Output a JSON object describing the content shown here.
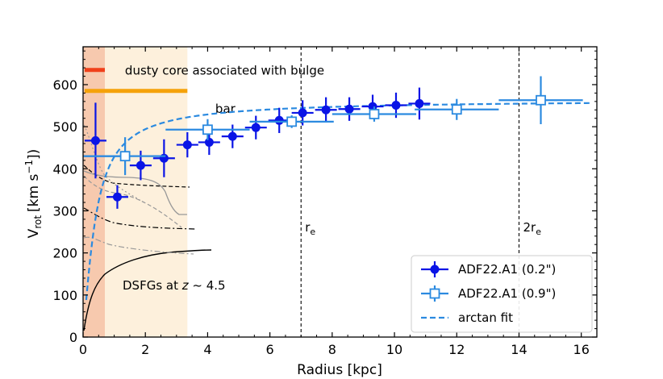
{
  "chart_data": {
    "type": "scatter",
    "title": "",
    "xlabel": "Radius [kpc]",
    "ylabel_main": "V",
    "ylabel_sub": "rot",
    "ylabel_unit": "[km s",
    "ylabel_exp": "−1",
    "ylabel_close": "])",
    "xlim": [
      0,
      16.5
    ],
    "ylim": [
      0,
      690
    ],
    "xticks": [
      0,
      2,
      4,
      6,
      8,
      10,
      12,
      14,
      16
    ],
    "yticks": [
      0,
      100,
      200,
      300,
      400,
      500,
      600
    ],
    "shaded_regions": [
      {
        "name": "dusty-core-region",
        "x0": 0,
        "x1": 0.7,
        "color": "#f7c9ae"
      },
      {
        "name": "bar-region",
        "x0": 0.7,
        "x1": 3.35,
        "color": "#fdf0dc"
      }
    ],
    "annotation_lines": [
      {
        "name": "dusty-core-line",
        "x0": 0.05,
        "x1": 0.7,
        "y": 635,
        "color": "#f0401a",
        "label": "dusty core associated with bulge"
      },
      {
        "name": "bar-line",
        "x0": 0.05,
        "x1": 3.35,
        "y": 585,
        "color": "#f5a20a",
        "label": "bar"
      }
    ],
    "vlines": [
      {
        "name": "re-line",
        "x": 7.0,
        "label_main": "r",
        "label_sub": "e"
      },
      {
        "name": "2re-line",
        "x": 14.0,
        "label_main": "2r",
        "label_sub": "e"
      }
    ],
    "series": [
      {
        "name": "ADF22.A1 (0.2\")",
        "color": "#0a14e6",
        "marker": "filled-circle",
        "points": [
          {
            "x": 0.4,
            "y": 467,
            "xerr": 0.35,
            "yerr": 90
          },
          {
            "x": 1.1,
            "y": 333,
            "xerr": 0.35,
            "yerr": 28
          },
          {
            "x": 1.85,
            "y": 408,
            "xerr": 0.35,
            "yerr": 35
          },
          {
            "x": 2.6,
            "y": 425,
            "xerr": 0.35,
            "yerr": 45
          },
          {
            "x": 3.35,
            "y": 457,
            "xerr": 0.35,
            "yerr": 30
          },
          {
            "x": 4.05,
            "y": 463,
            "xerr": 0.35,
            "yerr": 30
          },
          {
            "x": 4.8,
            "y": 477,
            "xerr": 0.35,
            "yerr": 28
          },
          {
            "x": 5.55,
            "y": 498,
            "xerr": 0.35,
            "yerr": 28
          },
          {
            "x": 6.3,
            "y": 515,
            "xerr": 0.35,
            "yerr": 30
          },
          {
            "x": 7.05,
            "y": 533,
            "xerr": 0.35,
            "yerr": 30
          },
          {
            "x": 7.8,
            "y": 540,
            "xerr": 0.35,
            "yerr": 30
          },
          {
            "x": 8.55,
            "y": 542,
            "xerr": 0.35,
            "yerr": 28
          },
          {
            "x": 9.3,
            "y": 548,
            "xerr": 0.35,
            "yerr": 28
          },
          {
            "x": 10.05,
            "y": 551,
            "xerr": 0.35,
            "yerr": 30
          },
          {
            "x": 10.8,
            "y": 555,
            "xerr": 0.35,
            "yerr": 38
          }
        ]
      },
      {
        "name": "ADF22.A1 (0.9\")",
        "color": "#2b8ae0",
        "marker": "open-square",
        "points": [
          {
            "x": 0.0,
            "y": 430,
            "xerr": 1.3,
            "yerr": 0
          },
          {
            "x": 1.35,
            "y": 430,
            "xerr": 1.3,
            "yerr": 45
          },
          {
            "x": 4.0,
            "y": 493,
            "xerr": 1.35,
            "yerr": 25
          },
          {
            "x": 6.7,
            "y": 512,
            "xerr": 1.35,
            "yerr": 15
          },
          {
            "x": 9.35,
            "y": 530,
            "xerr": 1.35,
            "yerr": 18
          },
          {
            "x": 12.0,
            "y": 541,
            "xerr": 1.35,
            "yerr": 25
          },
          {
            "x": 14.7,
            "y": 563,
            "xerr": 1.35,
            "yerr": 57
          }
        ]
      }
    ],
    "fit": {
      "name": "arctan fit",
      "color": "#2b8ae0",
      "vmax": 565,
      "rt": 0.4,
      "x_range": [
        0.1,
        16.3
      ]
    },
    "comparison_label": "DSFGs at z ~ 4.5",
    "legend_position": "lower-right"
  }
}
